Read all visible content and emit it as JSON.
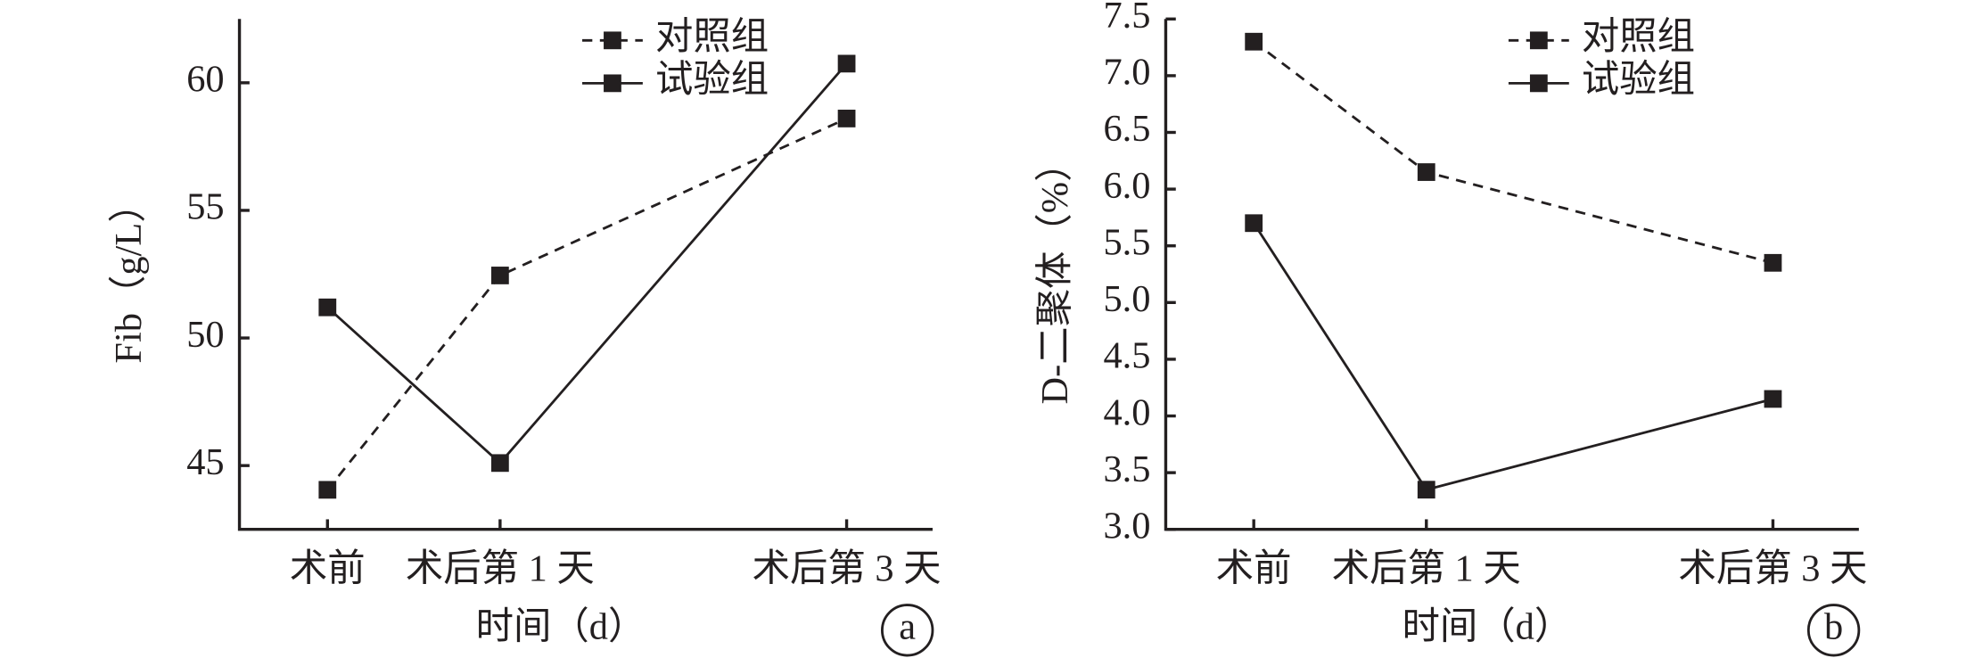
{
  "chart_data": [
    {
      "type": "line",
      "panel": "a",
      "x_label": "时间（d）",
      "y_label": "Fib（g/L）",
      "categories": [
        "术前",
        "术后第 1 天",
        "术后第 3 天"
      ],
      "ylim": [
        42.5,
        62.5
      ],
      "yticks": [
        45,
        50,
        55,
        60
      ],
      "legend": "upper-center",
      "series": [
        {
          "name": "对照组",
          "color": "#231f20",
          "style": "dashed",
          "values": [
            44.05,
            52.45,
            58.6
          ]
        },
        {
          "name": "试验组",
          "color": "#231f20",
          "style": "solid",
          "values": [
            51.2,
            45.1,
            60.75
          ]
        }
      ]
    },
    {
      "type": "line",
      "panel": "b",
      "x_label": "时间（d）",
      "y_label": "D-二聚体（%）",
      "categories": [
        "术前",
        "术后第 1 天",
        "术后第 3 天"
      ],
      "ylim": [
        3.0,
        7.5
      ],
      "yticks": [
        {
          "value": 3.0,
          "label": "3.0"
        },
        3.5,
        {
          "value": 4.0,
          "label": "4.0"
        },
        4.5,
        {
          "value": 5.0,
          "label": "5.0"
        },
        5.5,
        {
          "value": 6.0,
          "label": "6.0"
        },
        6.5,
        {
          "value": 7.0,
          "label": "7.0"
        },
        7.5
      ],
      "legend": "upper-center",
      "series": [
        {
          "name": "对照组",
          "color": "#231f20",
          "style": "dashed",
          "values": [
            7.3,
            6.15,
            5.35
          ]
        },
        {
          "name": "试验组",
          "color": "#231f20",
          "style": "solid",
          "values": [
            5.7,
            3.35,
            4.15
          ]
        }
      ]
    }
  ]
}
